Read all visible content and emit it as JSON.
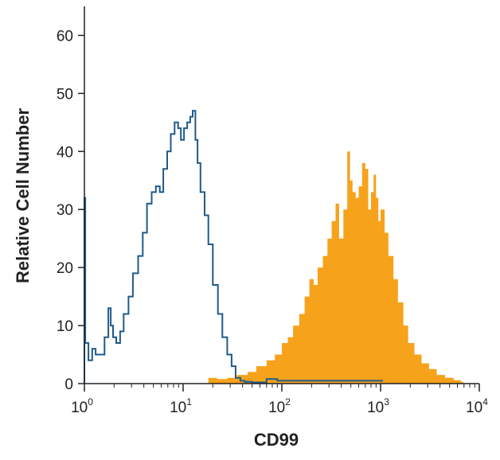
{
  "chart_data": {
    "type": "area",
    "title": "",
    "xlabel": "CD99",
    "ylabel": "Relative Cell Number",
    "xscale": "log",
    "xlim": [
      1,
      10000
    ],
    "ylim": [
      0,
      65
    ],
    "grid": false,
    "legend": "none",
    "y_ticks": [
      0,
      10,
      20,
      30,
      40,
      50,
      60
    ],
    "x_ticks": [
      {
        "base": "10",
        "exp": "0",
        "value": 1
      },
      {
        "base": "10",
        "exp": "1",
        "value": 10
      },
      {
        "base": "10",
        "exp": "2",
        "value": 100
      },
      {
        "base": "10",
        "exp": "3",
        "value": 1000
      },
      {
        "base": "10",
        "exp": "4",
        "value": 10000
      }
    ],
    "series": [
      {
        "style": "outline",
        "color": "#1f5a8a",
        "x": [
          1.0,
          1.02,
          1.1,
          1.2,
          1.3,
          1.45,
          1.6,
          1.75,
          1.85,
          1.95,
          2.1,
          2.3,
          2.5,
          2.8,
          3.1,
          3.5,
          3.9,
          4.3,
          4.8,
          5.3,
          5.8,
          6.3,
          6.9,
          7.5,
          8.2,
          8.9,
          9.5,
          10.2,
          11.0,
          11.8,
          12.5,
          13.3,
          14.0,
          15.0,
          16.5,
          18.0,
          20.0,
          22.5,
          25.0,
          28.0,
          31.0,
          34.0,
          38.0,
          42.0,
          50.0,
          70.0,
          90.0,
          400.0,
          1000.0
        ],
        "y": [
          32,
          7,
          4,
          6,
          5,
          5,
          8,
          13,
          10,
          8,
          7,
          9,
          12,
          15,
          19,
          22,
          26,
          31,
          33,
          34,
          33,
          37,
          40,
          43,
          45,
          44,
          42,
          44,
          45,
          46,
          47,
          42,
          38,
          33,
          29,
          24,
          17,
          12,
          8,
          5,
          3,
          1,
          0.5,
          0.3,
          0.2,
          0.8,
          0.5,
          0.5,
          0.5
        ]
      },
      {
        "style": "filled",
        "color": "#f7a21b",
        "x": [
          18,
          22,
          28,
          35,
          45,
          55,
          70,
          85,
          100,
          115,
          130,
          150,
          170,
          190,
          210,
          230,
          260,
          290,
          320,
          350,
          380,
          420,
          460,
          490,
          520,
          560,
          600,
          650,
          700,
          750,
          800,
          850,
          900,
          950,
          1000,
          1100,
          1200,
          1350,
          1500,
          1700,
          1900,
          2200,
          2600,
          3100,
          3700,
          4500,
          5500,
          6500
        ],
        "y": [
          1,
          0.8,
          1,
          1.5,
          2,
          3,
          4,
          5,
          7,
          8,
          10,
          12,
          15,
          18,
          17,
          20,
          22,
          25,
          28,
          31,
          25,
          30,
          40,
          35,
          33,
          32,
          34,
          38,
          37,
          30,
          33,
          36,
          32,
          28,
          30,
          26,
          22,
          18,
          14,
          10,
          7,
          5,
          3.5,
          2.5,
          1.5,
          1,
          0.6,
          0.3
        ]
      }
    ]
  }
}
